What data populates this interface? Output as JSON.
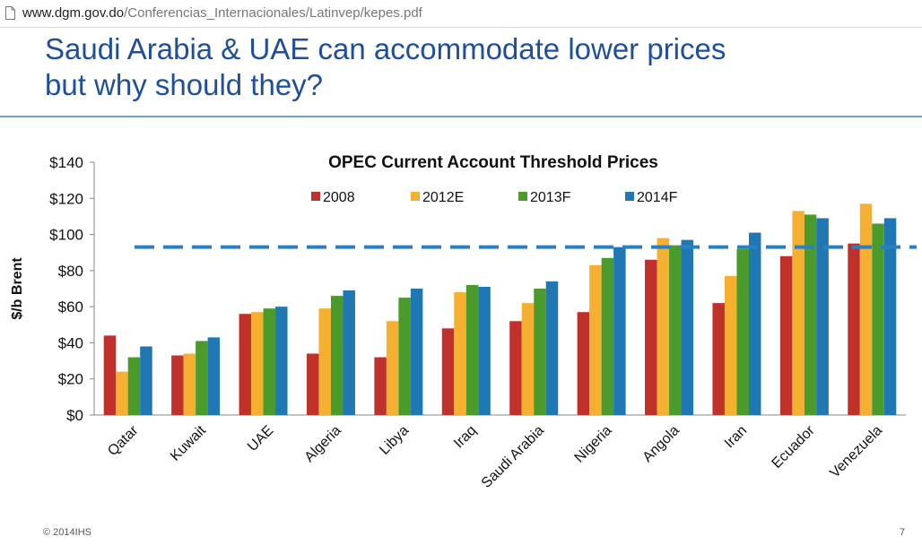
{
  "browser": {
    "url_domain": "www.dgm.gov.do",
    "url_path": "/Conferencias_Internacionales/Latinvep/kepes.pdf",
    "page_icon": "document-icon"
  },
  "slide": {
    "title_line1": "Saudi Arabia & UAE can accommodate lower prices",
    "title_line2": "but why should they?",
    "title_color": "#1f4e9a",
    "footer_copyright": "© 2014IHS",
    "page_number": "7"
  },
  "chart_data": {
    "type": "bar",
    "title": "OPEC Current Account Threshold Prices",
    "ylabel": "$/b Brent",
    "xlabel": "",
    "ylim": [
      0,
      140
    ],
    "yticks": [
      0,
      20,
      40,
      60,
      80,
      100,
      120,
      140
    ],
    "ytick_labels": [
      "$0",
      "$20",
      "$40",
      "$60",
      "$80",
      "$100",
      "$120",
      "$140"
    ],
    "grid": false,
    "legend_position": "top",
    "categories": [
      "Qatar",
      "Kuwait",
      "UAE",
      "Algeria",
      "Libya",
      "Iraq",
      "Saudi Arabia",
      "Nigeria",
      "Angola",
      "Iran",
      "Ecuador",
      "Venezuela"
    ],
    "series": [
      {
        "name": "2008",
        "color": "#c0312b",
        "values": [
          44,
          33,
          56,
          34,
          32,
          48,
          52,
          57,
          86,
          62,
          88,
          95
        ]
      },
      {
        "name": "2012E",
        "color": "#f6b031",
        "values": [
          24,
          34,
          57,
          59,
          52,
          68,
          62,
          83,
          98,
          77,
          113,
          117
        ]
      },
      {
        "name": "2013F",
        "color": "#4a9b2c",
        "values": [
          32,
          41,
          59,
          66,
          65,
          72,
          70,
          87,
          94,
          92,
          111,
          106
        ]
      },
      {
        "name": "2014F",
        "color": "#1f77b4",
        "values": [
          38,
          43,
          60,
          69,
          70,
          71,
          74,
          93,
          97,
          101,
          109,
          109
        ]
      }
    ],
    "reference_line": {
      "value": 93,
      "style": "dashed",
      "color": "#2a7fc1"
    }
  }
}
